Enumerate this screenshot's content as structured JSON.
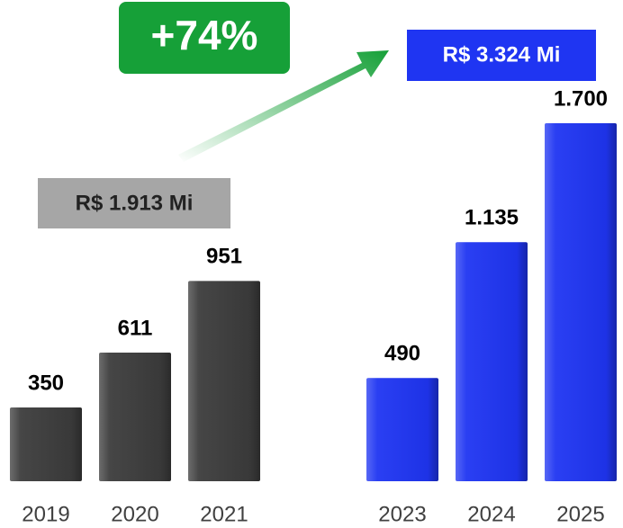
{
  "chart_data": {
    "type": "bar",
    "categories": [
      "2019",
      "2020",
      "2021",
      null,
      "2023",
      "2024",
      "2025"
    ],
    "values": [
      350,
      611,
      951,
      null,
      490,
      1135,
      1700
    ],
    "value_labels": [
      "350",
      "611",
      "951",
      null,
      "490",
      "1.135",
      "1.700"
    ],
    "colors": [
      "#3c3c3c",
      "#3c3c3c",
      "#3c3c3c",
      null,
      "#1f35f2",
      "#1f35f2",
      "#1f35f2"
    ],
    "annotations": [
      "+74%",
      "R$ 3.324 Mi",
      "R$ 1.913 Mi"
    ]
  }
}
